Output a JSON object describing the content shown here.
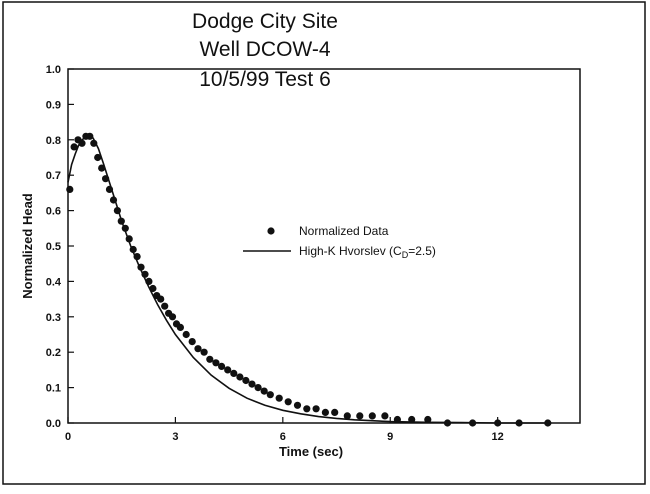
{
  "chart_data": {
    "type": "scatter",
    "title_lines": [
      "Dodge City Site",
      "Well DCOW-4",
      "10/5/99 Test 6"
    ],
    "xlabel": "Time (sec)",
    "ylabel": "Normalized Head",
    "xlim": [
      0,
      14.3
    ],
    "ylim": [
      0,
      1.0
    ],
    "xticks": [
      0,
      3,
      6,
      9,
      12
    ],
    "yticks": [
      0.0,
      0.1,
      0.2,
      0.3,
      0.4,
      0.5,
      0.6,
      0.7,
      0.8,
      0.9,
      1.0
    ],
    "ytick_labels": [
      "0.0",
      "0.1",
      "0.2",
      "0.3",
      "0.4",
      "0.5",
      "0.6",
      "0.7",
      "0.8",
      "0.9",
      "1.0"
    ],
    "grid": false,
    "legend_position": "center-right",
    "series": [
      {
        "name": "Normalized Data",
        "type": "scatter",
        "color": "#111111",
        "x": [
          0.05,
          0.17,
          0.28,
          0.39,
          0.5,
          0.61,
          0.72,
          0.83,
          0.94,
          1.05,
          1.16,
          1.27,
          1.38,
          1.49,
          1.6,
          1.71,
          1.82,
          1.93,
          2.04,
          2.15,
          2.26,
          2.37,
          2.48,
          2.59,
          2.7,
          2.81,
          2.92,
          3.03,
          3.14,
          3.3,
          3.47,
          3.63,
          3.8,
          3.96,
          4.13,
          4.29,
          4.46,
          4.63,
          4.8,
          4.97,
          5.14,
          5.31,
          5.48,
          5.65,
          5.9,
          6.15,
          6.41,
          6.67,
          6.93,
          7.19,
          7.45,
          7.8,
          8.15,
          8.5,
          8.85,
          9.2,
          9.6,
          10.05,
          10.6,
          11.3,
          12.0,
          12.6,
          13.4
        ],
        "y": [
          0.66,
          0.78,
          0.8,
          0.79,
          0.81,
          0.81,
          0.79,
          0.75,
          0.72,
          0.69,
          0.66,
          0.63,
          0.6,
          0.57,
          0.55,
          0.52,
          0.49,
          0.47,
          0.44,
          0.42,
          0.4,
          0.38,
          0.36,
          0.35,
          0.33,
          0.31,
          0.3,
          0.28,
          0.27,
          0.25,
          0.23,
          0.21,
          0.2,
          0.18,
          0.17,
          0.16,
          0.15,
          0.14,
          0.13,
          0.12,
          0.11,
          0.1,
          0.09,
          0.08,
          0.07,
          0.06,
          0.05,
          0.04,
          0.04,
          0.03,
          0.03,
          0.02,
          0.02,
          0.02,
          0.02,
          0.01,
          0.01,
          0.01,
          0.0,
          0.0,
          0.0,
          0.0,
          0.0
        ]
      },
      {
        "name": "High-K Hvorslev (C",
        "name_subscript": "D",
        "name_suffix": "=2.5)",
        "type": "line",
        "color": "#111111",
        "x": [
          0.0,
          0.1,
          0.2,
          0.3,
          0.4,
          0.55,
          0.7,
          0.85,
          1.0,
          1.25,
          1.5,
          1.75,
          2.0,
          2.25,
          2.5,
          2.75,
          3.0,
          3.5,
          4.0,
          4.5,
          5.0,
          5.5,
          6.0,
          6.5,
          7.0,
          7.5,
          8.0,
          9.0,
          10.0,
          11.0,
          12.0,
          13.0,
          13.5
        ],
        "y": [
          0.68,
          0.73,
          0.76,
          0.785,
          0.8,
          0.815,
          0.805,
          0.775,
          0.73,
          0.65,
          0.57,
          0.5,
          0.44,
          0.385,
          0.335,
          0.29,
          0.25,
          0.185,
          0.135,
          0.098,
          0.07,
          0.05,
          0.036,
          0.026,
          0.018,
          0.013,
          0.009,
          0.004,
          0.002,
          0.001,
          0.0,
          0.0,
          0.0
        ]
      }
    ]
  }
}
